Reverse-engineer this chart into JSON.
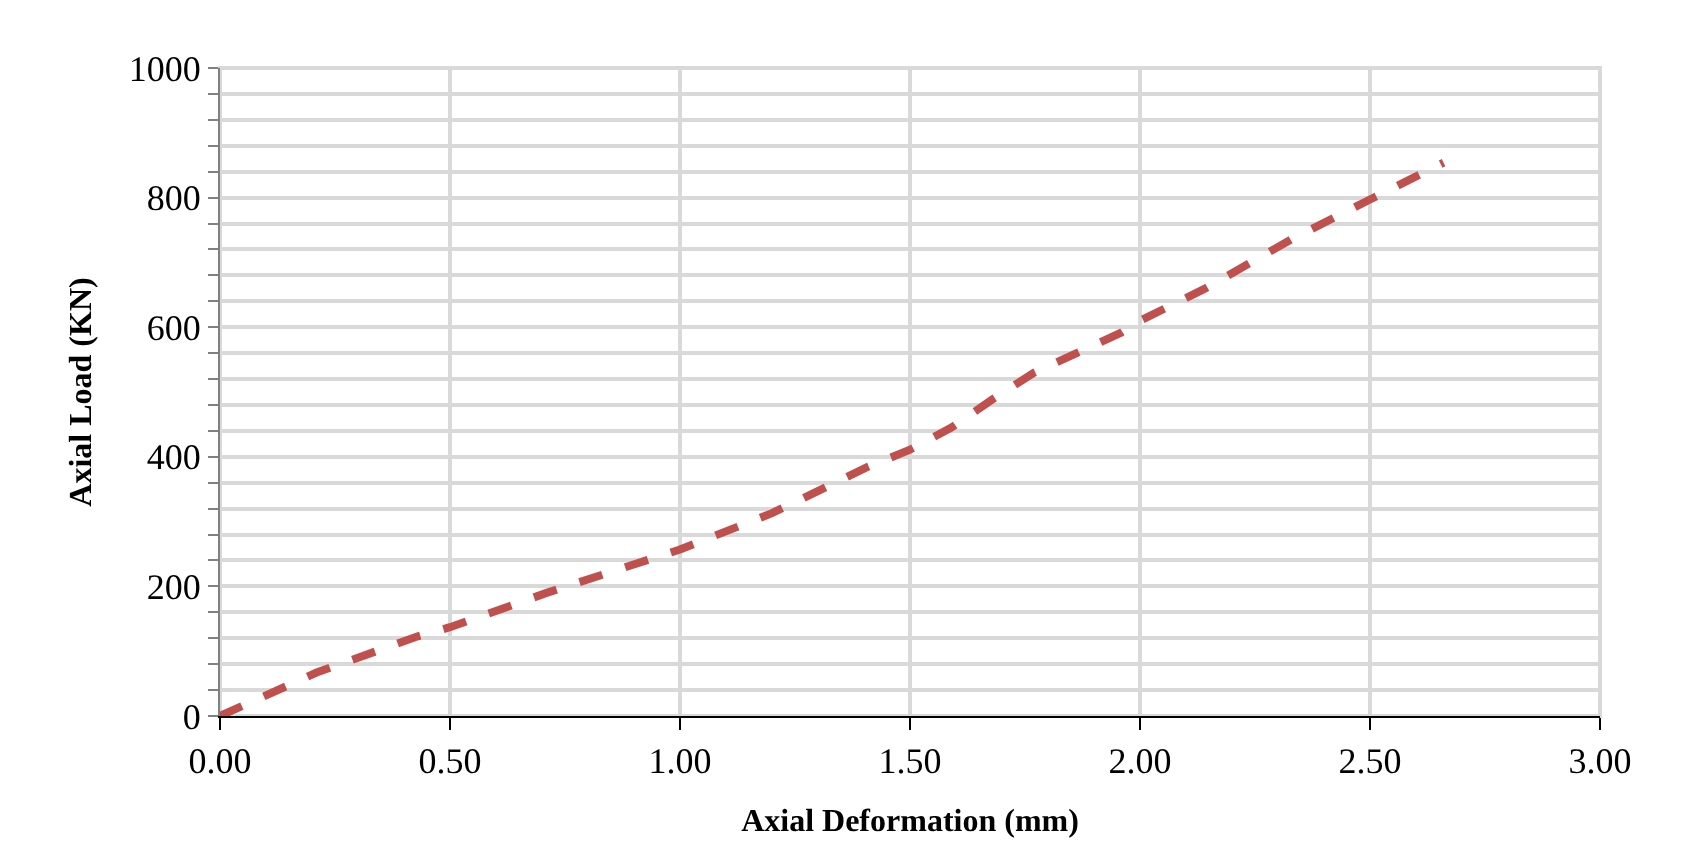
{
  "chart_data": {
    "type": "line",
    "xlabel": "Axial Deformation (mm)",
    "ylabel": "Axial Load (KN)",
    "x": [
      0,
      0.21,
      0.43,
      0.5,
      0.71,
      1.0,
      1.2,
      1.41,
      1.5,
      1.59,
      1.68,
      1.77,
      1.96,
      2.0,
      2.14,
      2.33,
      2.5,
      2.66
    ],
    "series": [
      {
        "color": "#c0504d",
        "values": [
          0,
          67,
          123,
          137,
          190,
          257,
          313,
          385,
          411,
          445,
          489,
          530,
          592,
          610,
          659,
          736,
          797,
          854
        ]
      }
    ],
    "xlim": [
      0,
      3
    ],
    "xticks": [
      {
        "value": 0,
        "label": "0.00"
      },
      {
        "value": 0.5,
        "label": "0.50"
      },
      {
        "value": 1,
        "label": "1.00"
      },
      {
        "value": 1.5,
        "label": "1.50"
      },
      {
        "value": 2,
        "label": "2.00"
      },
      {
        "value": 2.5,
        "label": "2.50"
      },
      {
        "value": 3,
        "label": "3.00"
      }
    ],
    "ylim": [
      0,
      1000
    ],
    "yticks": [
      0,
      {
        "value": 40,
        "label": null
      },
      {
        "value": 80,
        "label": null
      },
      {
        "value": 120,
        "label": null
      },
      {
        "value": 160,
        "label": null
      },
      200,
      {
        "value": 240,
        "label": null
      },
      {
        "value": 280,
        "label": null
      },
      {
        "value": 320,
        "label": null
      },
      {
        "value": 360,
        "label": null
      },
      400,
      {
        "value": 440,
        "label": null
      },
      {
        "value": 480,
        "label": null
      },
      {
        "value": 520,
        "label": null
      },
      {
        "value": 560,
        "label": null
      },
      600,
      {
        "value": 640,
        "label": null
      },
      {
        "value": 680,
        "label": null
      },
      {
        "value": 720,
        "label": null
      },
      {
        "value": 760,
        "label": null
      },
      800,
      {
        "value": 840,
        "label": null
      },
      {
        "value": 880,
        "label": null
      },
      {
        "value": 920,
        "label": null
      },
      {
        "value": 960,
        "label": null
      },
      1000
    ],
    "grid": true,
    "legend": false,
    "marker": "none",
    "line_style": "dashed"
  }
}
